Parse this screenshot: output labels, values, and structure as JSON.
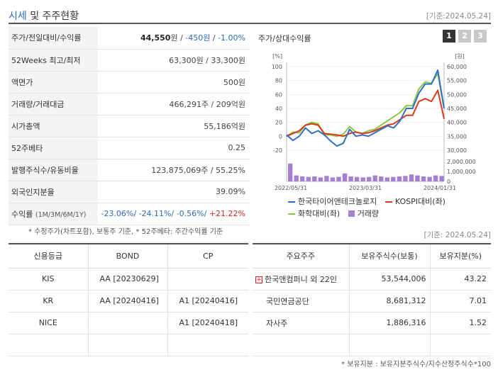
{
  "header": {
    "title_main": "시세",
    "title_rest": "및 주주현황",
    "date": "[기준:2024.05.24]"
  },
  "summary": [
    {
      "label": "주가/전일대비/수익률",
      "price": "44,550",
      "unit": "원",
      "sep": " / ",
      "change": "-450원",
      "sep2": " / ",
      "rate": "-1.00%"
    },
    {
      "label": "52Weeks 최고/최저",
      "value": "63,300원 / 33,300원"
    },
    {
      "label": "액면가",
      "value": "500원"
    },
    {
      "label": "거래량/거래대금",
      "value": "466,291주 / 209억원"
    },
    {
      "label": "시가총액",
      "value": "55,186억원"
    },
    {
      "label": "52주베타",
      "value": "0.25"
    },
    {
      "label": "발행주식수/유동비율",
      "value": "123,875,069주 / 55.25%"
    },
    {
      "label": "외국인지분율",
      "value": "39.09%"
    },
    {
      "label": "수익률",
      "sub": "(1M/3M/6M/1Y)",
      "r1": "-23.06%/",
      "r2": " -24.11%/",
      "r3": " -0.56%/",
      "r4": " +21.22%"
    }
  ],
  "notes": "* 수정주가(차트포함), 보통주 기준, * 52주베타: 주간수익률 기준",
  "chart": {
    "title": "주가/상대수익률",
    "tabs": [
      "1",
      "2",
      "3"
    ],
    "left_unit": "[%]",
    "right_unit": "[원]",
    "legend": [
      "한국타이어앤테크놀로지",
      "KOSPI대비(좌)",
      "화학대비(좌)",
      "거래량"
    ],
    "colors": {
      "stock": "#2f6fc4",
      "kospi": "#d83a1a",
      "chem": "#8cc63f",
      "volume": "#a77fd1"
    }
  },
  "chart_data": {
    "type": "line",
    "x_ticks": [
      "2022/05/31",
      "2023/03/31",
      "2024/01/31"
    ],
    "y_left_ticks": [
      "100",
      "80",
      "60",
      "40",
      "20",
      "0",
      "-20"
    ],
    "y_left_range": [
      -20,
      100
    ],
    "y_right_ticks": [
      "60,000",
      "55,000",
      "50,000",
      "45,000",
      "40,000",
      "35,000",
      "30,000"
    ],
    "y_right_range": [
      30000,
      60000
    ],
    "volume_ticks": [
      "2,000,000",
      "1,000,000",
      "0"
    ],
    "volume_range": [
      0,
      2000000
    ],
    "series": [
      {
        "name": "한국타이어앤테크놀로지",
        "values": [
          2,
          -6,
          0,
          12,
          4,
          8,
          2,
          -7,
          -14,
          -10,
          10,
          0,
          2,
          0,
          5,
          10,
          15,
          12,
          22,
          40,
          40,
          62,
          75,
          75,
          95,
          40
        ]
      },
      {
        "name": "KOSPI대비(좌)",
        "values": [
          0,
          4,
          8,
          16,
          18,
          16,
          4,
          3,
          2,
          0,
          4,
          6,
          4,
          5,
          8,
          12,
          16,
          18,
          24,
          30,
          30,
          50,
          54,
          50,
          66,
          25
        ]
      },
      {
        "name": "화학대비(좌)",
        "values": [
          0,
          6,
          5,
          16,
          20,
          18,
          2,
          2,
          0,
          3,
          14,
          6,
          4,
          8,
          10,
          16,
          22,
          28,
          34,
          44,
          44,
          68,
          78,
          76,
          90,
          40
        ]
      }
    ],
    "volume": [
      1800000,
      600000,
      500000,
      450000,
      500000,
      400000,
      550000,
      400000,
      450000,
      800000,
      500000,
      450000,
      400000,
      450000,
      600000,
      500000,
      400000,
      450000,
      500000,
      550000,
      700000,
      600000,
      500000,
      450000,
      600000,
      550000
    ]
  },
  "date2": "[기준: 2024.05.24]",
  "credit": {
    "headers": [
      "신용등급",
      "BOND",
      "CP"
    ],
    "rows": [
      [
        "KIS",
        "AA  [20230629]",
        ""
      ],
      [
        "KR",
        "AA  [20240416]",
        "A1  [20240416]"
      ],
      [
        "NICE",
        "",
        "A1  [20240418]"
      ],
      [
        "",
        "",
        ""
      ]
    ]
  },
  "holders": {
    "headers": [
      "주요주주",
      "보유주식수(보통)",
      "보유지분(%)"
    ],
    "rows": [
      [
        "한국앤컴퍼니 외 22인",
        "53,544,006",
        "43.22"
      ],
      [
        "국민연금공단",
        "8,681,312",
        "7.01"
      ],
      [
        "자사주",
        "1,886,316",
        "1.52"
      ],
      [
        "",
        "",
        ""
      ]
    ]
  },
  "footnote": "* 보유지분 : 보유지분주식수/지수산정주식수*100"
}
